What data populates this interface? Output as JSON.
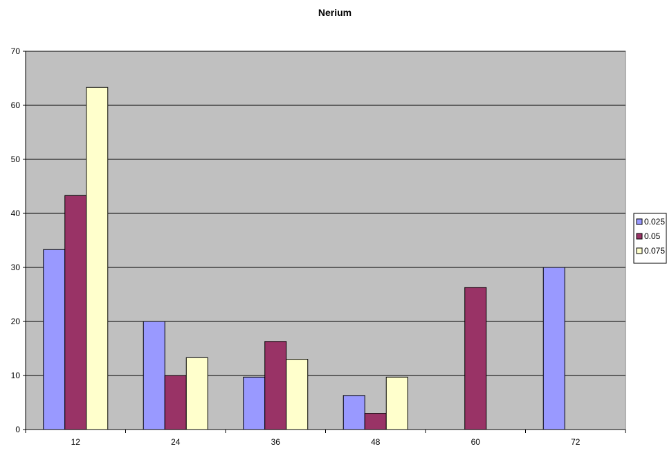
{
  "chart_data": {
    "type": "bar",
    "title": "Nerium",
    "xlabel": "",
    "ylabel": "",
    "categories": [
      "12",
      "24",
      "36",
      "48",
      "60",
      "72"
    ],
    "series": [
      {
        "name": "0.025",
        "color": "#9999ff",
        "values": [
          33.3,
          20,
          9.7,
          6.3,
          0,
          30
        ]
      },
      {
        "name": "0.05",
        "color": "#993366",
        "values": [
          43.3,
          10,
          16.3,
          3,
          26.3,
          0
        ]
      },
      {
        "name": "0.075",
        "color": "#ffffcc",
        "values": [
          63.3,
          13.3,
          13,
          9.7,
          0,
          0
        ]
      }
    ],
    "ylim": [
      0,
      70
    ],
    "yticks": [
      "0",
      "10",
      "20",
      "30",
      "40",
      "50",
      "60",
      "70"
    ],
    "grid": true,
    "plot_background": "#c0c0c0",
    "legend_position": "right"
  }
}
